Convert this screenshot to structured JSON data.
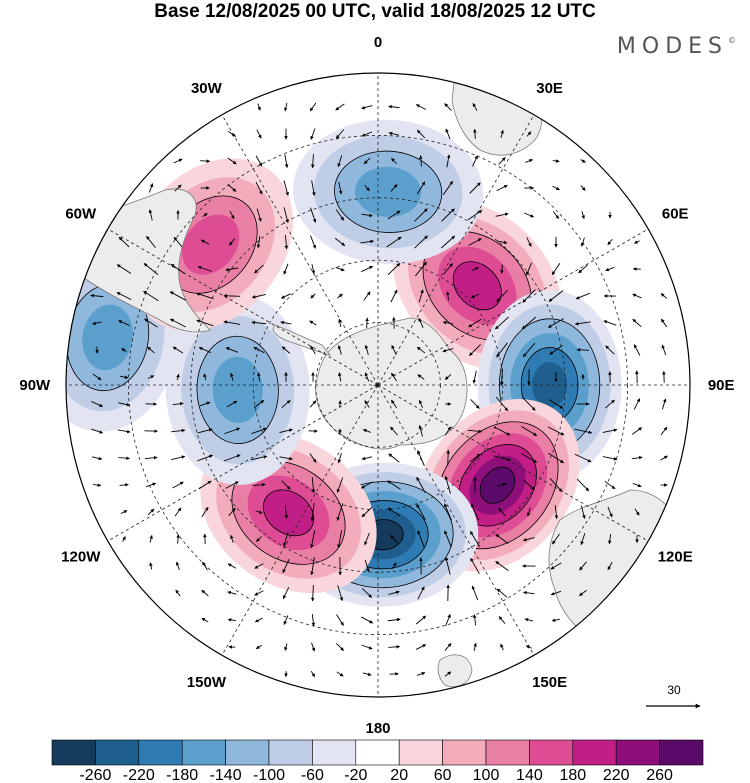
{
  "title": "Base 12/08/2025 00 UTC, valid 18/08/2025 12 UTC",
  "brand": {
    "name": "MODES",
    "mark": "©"
  },
  "longitude_labels": [
    "0",
    "30E",
    "60E",
    "90E",
    "120E",
    "150E",
    "180",
    "150W",
    "120W",
    "90W",
    "60W",
    "30W"
  ],
  "vector_reference": {
    "value": "30"
  },
  "colorbar": {
    "ticks": [
      "-260",
      "-220",
      "-180",
      "-140",
      "-100",
      "-60",
      "-20",
      "20",
      "60",
      "100",
      "140",
      "180",
      "220",
      "260"
    ],
    "colors": [
      "#143b5c",
      "#1f5f8f",
      "#2f7bb3",
      "#5b9fcd",
      "#8fb8dc",
      "#bfcde6",
      "#e3e4f1",
      "#ffffff",
      "#f8d6db",
      "#f3acbc",
      "#ea7fa6",
      "#de4d94",
      "#c11f85",
      "#8e0f79",
      "#5a0a69"
    ]
  },
  "anomaly_centers": [
    {
      "name": "positive-center-0",
      "lon": 45,
      "lat_ring": 0.45,
      "value": 180
    },
    {
      "name": "negative-center-90e",
      "lon": 90,
      "lat_ring": 0.55,
      "value": -220
    },
    {
      "name": "positive-center-120e",
      "lon": 130,
      "lat_ring": 0.5,
      "value": 240
    },
    {
      "name": "negative-center-180",
      "lon": 178,
      "lat_ring": 0.48,
      "value": -250
    },
    {
      "name": "positive-center-150w",
      "lon": 215,
      "lat_ring": 0.5,
      "value": 170
    },
    {
      "name": "negative-center-90w",
      "lon": 268,
      "lat_ring": 0.45,
      "value": -120
    },
    {
      "name": "negative-center-90w-outer",
      "lon": 280,
      "lat_ring": 0.88,
      "value": -140
    },
    {
      "name": "positive-center-60w",
      "lon": 310,
      "lat_ring": 0.7,
      "value": 120
    },
    {
      "name": "negative-center-0",
      "lon": 3,
      "lat_ring": 0.62,
      "value": -150
    }
  ]
}
